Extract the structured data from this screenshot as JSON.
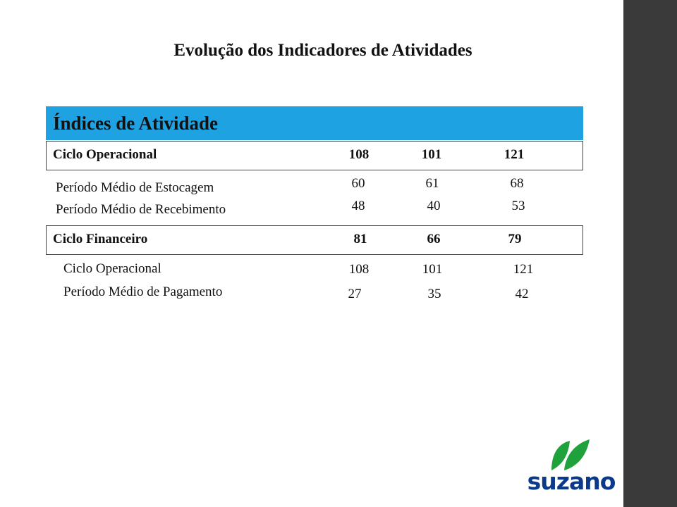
{
  "title": "Evolução dos Indicadores de Atividades",
  "section_header": "Índices de Atividade",
  "ciclo_operacional": {
    "label": "Ciclo Operacional",
    "values": [
      "108",
      "101",
      "121"
    ],
    "components": [
      {
        "label": "Período Médio de Estocagem",
        "values": [
          "60",
          "61",
          "68"
        ]
      },
      {
        "label": "Período Médio de Recebimento",
        "values": [
          "48",
          "40",
          "53"
        ]
      }
    ]
  },
  "ciclo_financeiro": {
    "label": "Ciclo Financeiro",
    "values": [
      "81",
      "66",
      "79"
    ],
    "components": [
      {
        "label": "Ciclo Operacional",
        "values": [
          "108",
          "101",
          "121"
        ]
      },
      {
        "label": "Período Médio de Pagamento",
        "values": [
          "27",
          "35",
          "42"
        ]
      }
    ]
  },
  "logo": {
    "text": "suzano",
    "color": "#0b3a8c",
    "leaf_color": "#1fa23b"
  },
  "colors": {
    "header_bar": "#1fa2e1",
    "sidebar": "#3a3a3a"
  }
}
